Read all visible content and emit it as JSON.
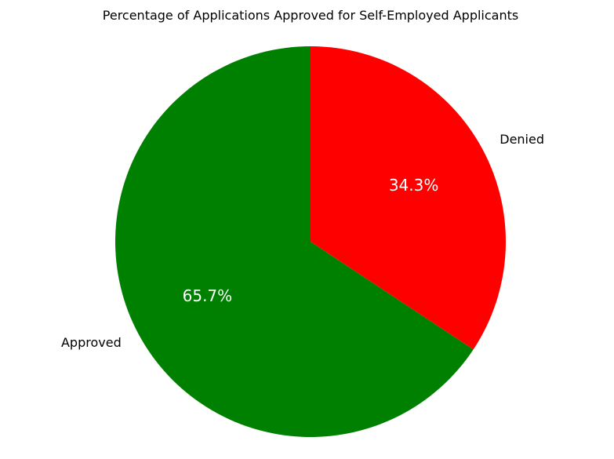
{
  "chart_data": {
    "type": "pie",
    "title": "Percentage of Applications Approved for Self-Employed Applicants",
    "labels": [
      "Approved",
      "Denied"
    ],
    "values": [
      65.7,
      34.3
    ],
    "percent_labels": [
      "65.7%",
      "34.3%"
    ],
    "colors": [
      "#008000",
      "#ff0000"
    ],
    "start_angle_deg": 90,
    "direction": "counterclockwise",
    "legend": "none"
  }
}
